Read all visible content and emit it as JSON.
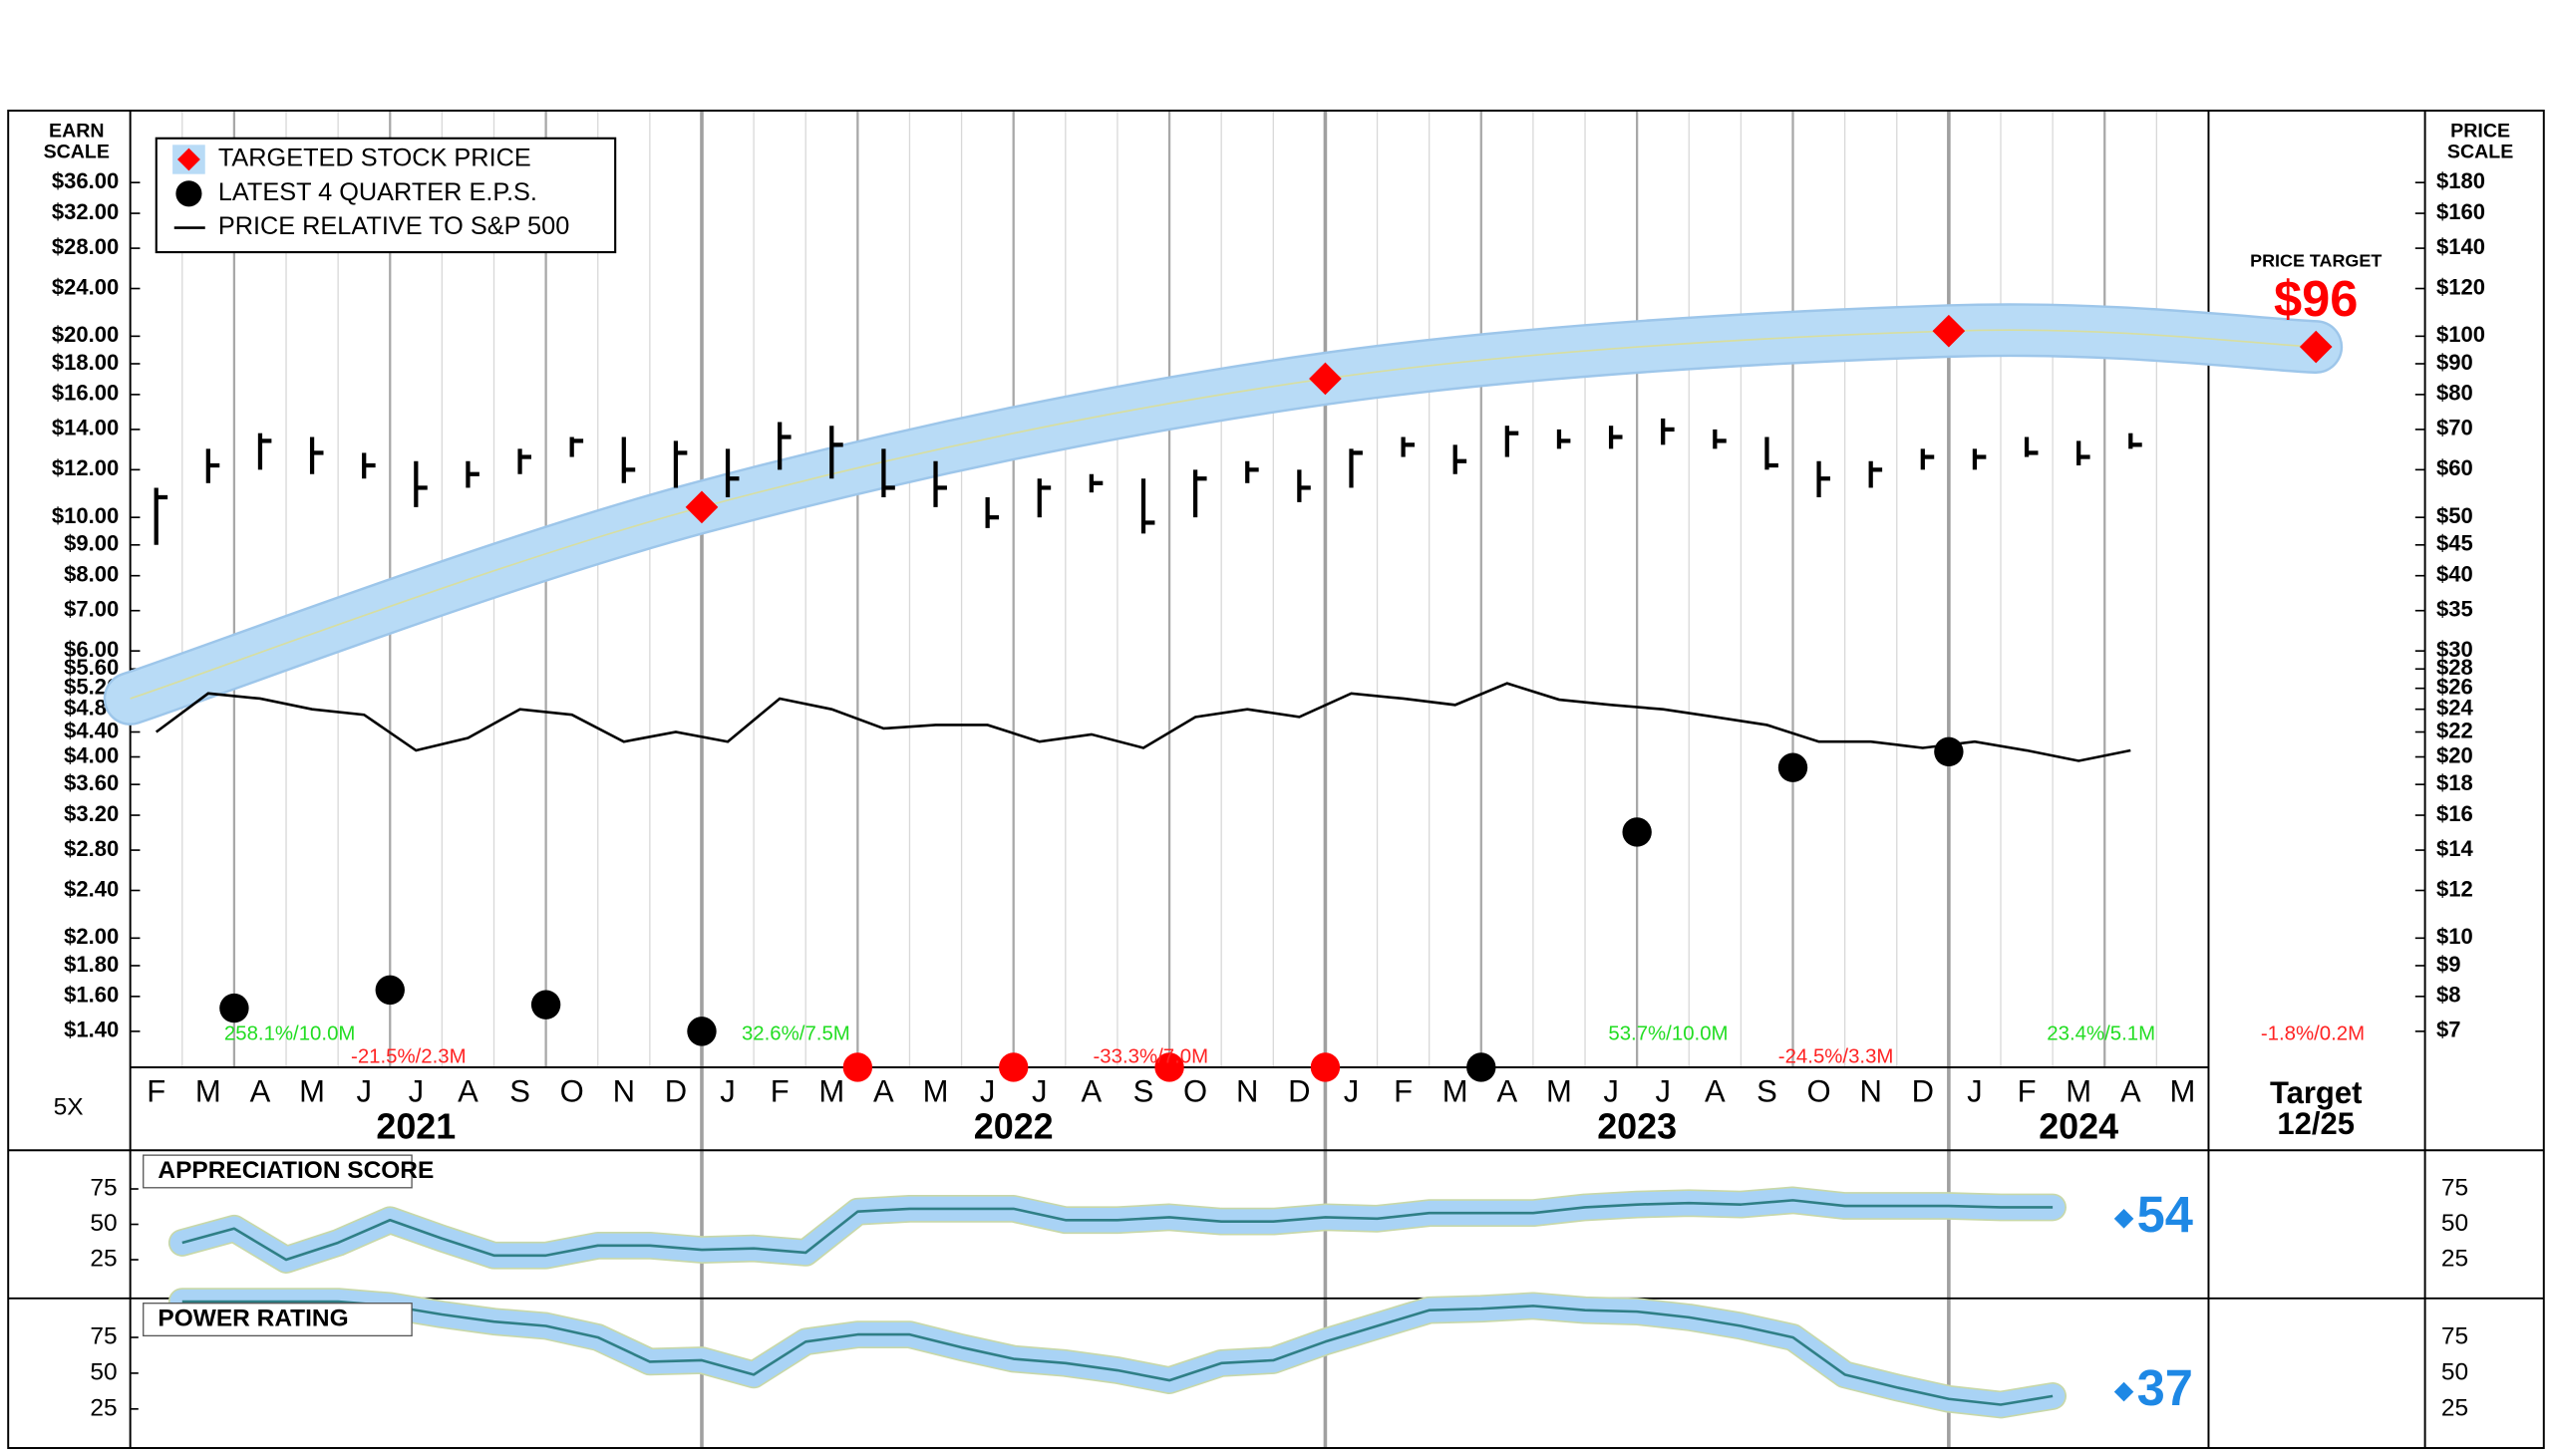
{
  "chart_data": [
    {
      "type": "stock",
      "y_label": [
        "EARN",
        "SCALE"
      ],
      "y2_label": [
        "PRICE",
        "SCALE"
      ],
      "multiplier_label": "5X",
      "log": true,
      "legend": "upper left",
      "ylim": [
        1.22,
        47.4
      ],
      "y2lim": [
        6.1,
        237
      ],
      "yticks": [
        {
          "value": 1.4,
          "label": "$1.40"
        },
        {
          "value": 1.6,
          "label": "$1.60"
        },
        {
          "value": 1.8,
          "label": "$1.80"
        },
        {
          "value": 2,
          "label": "$2.00"
        },
        {
          "value": 2.4,
          "label": "$2.40"
        },
        {
          "value": 2.8,
          "label": "$2.80"
        },
        {
          "value": 3.2,
          "label": "$3.20"
        },
        {
          "value": 3.6,
          "label": "$3.60"
        },
        {
          "value": 4,
          "label": "$4.00"
        },
        {
          "value": 4.4,
          "label": "$4.40"
        },
        {
          "value": 4.8,
          "label": "$4.80"
        },
        {
          "value": 5.2,
          "label": "$5.20"
        },
        {
          "value": 5.6,
          "label": "$5.60"
        },
        {
          "value": 6,
          "label": "$6.00"
        },
        {
          "value": 7,
          "label": "$7.00"
        },
        {
          "value": 8,
          "label": "$8.00"
        },
        {
          "value": 9,
          "label": "$9.00"
        },
        {
          "value": 10,
          "label": "$10.00"
        },
        {
          "value": 12,
          "label": "$12.00"
        },
        {
          "value": 14,
          "label": "$14.00"
        },
        {
          "value": 16,
          "label": "$16.00"
        },
        {
          "value": 18,
          "label": "$18.00"
        },
        {
          "value": 20,
          "label": "$20.00"
        },
        {
          "value": 24,
          "label": "$24.00"
        },
        {
          "value": 28,
          "label": "$28.00"
        },
        {
          "value": 32,
          "label": "$32.00"
        },
        {
          "value": 36,
          "label": "$36.00"
        }
      ],
      "y2ticks": [
        {
          "value": 7,
          "label": "$7"
        },
        {
          "value": 8,
          "label": "$8"
        },
        {
          "value": 9,
          "label": "$9"
        },
        {
          "value": 10,
          "label": "$10"
        },
        {
          "value": 12,
          "label": "$12"
        },
        {
          "value": 14,
          "label": "$14"
        },
        {
          "value": 16,
          "label": "$16"
        },
        {
          "value": 18,
          "label": "$18"
        },
        {
          "value": 20,
          "label": "$20"
        },
        {
          "value": 22,
          "label": "$22"
        },
        {
          "value": 24,
          "label": "$24"
        },
        {
          "value": 26,
          "label": "$26"
        },
        {
          "value": 28,
          "label": "$28"
        },
        {
          "value": 30,
          "label": "$30"
        },
        {
          "value": 35,
          "label": "$35"
        },
        {
          "value": 40,
          "label": "$40"
        },
        {
          "value": 45,
          "label": "$45"
        },
        {
          "value": 50,
          "label": "$50"
        },
        {
          "value": 60,
          "label": "$60"
        },
        {
          "value": 70,
          "label": "$70"
        },
        {
          "value": 80,
          "label": "$80"
        },
        {
          "value": 90,
          "label": "$90"
        },
        {
          "value": 100,
          "label": "$100"
        },
        {
          "value": 120,
          "label": "$120"
        },
        {
          "value": 140,
          "label": "$140"
        },
        {
          "value": 160,
          "label": "$160"
        },
        {
          "value": 180,
          "label": "$180"
        }
      ],
      "categories": [
        "F",
        "M",
        "A",
        "M",
        "J",
        "J",
        "A",
        "S",
        "O",
        "N",
        "D",
        "J",
        "F",
        "M",
        "A",
        "M",
        "J",
        "J",
        "A",
        "S",
        "O",
        "N",
        "D",
        "J",
        "F",
        "M",
        "A",
        "M",
        "J",
        "J",
        "A",
        "S",
        "O",
        "N",
        "D",
        "J",
        "F",
        "M",
        "A",
        "M"
      ],
      "year_labels": [
        "2021",
        "2022",
        "2023",
        "2024"
      ],
      "price_bars": {
        "axis": "y2",
        "color": "#000000",
        "high": [
          56,
          65,
          69,
          68,
          64,
          62,
          62,
          65,
          68,
          68,
          67,
          65,
          72,
          71,
          65,
          62,
          54,
          58,
          59,
          58,
          60,
          62,
          60,
          65,
          68,
          66,
          71,
          70,
          71,
          73,
          70,
          68,
          62,
          62,
          65,
          65,
          68,
          67,
          69,
          null
        ],
        "low": [
          45,
          57,
          60,
          59,
          58,
          52,
          56,
          59,
          63,
          57,
          56,
          54,
          60,
          58,
          54,
          52,
          48,
          50,
          55,
          47,
          50,
          57,
          53,
          56,
          63,
          59,
          63,
          65,
          65,
          66,
          65,
          60,
          54,
          56,
          60,
          60,
          63,
          61,
          65,
          null
        ],
        "close": [
          54,
          61,
          67,
          64,
          61,
          56,
          59,
          63,
          67,
          60,
          64,
          58,
          68,
          66,
          56,
          56,
          50,
          56,
          57,
          49,
          58,
          60,
          56,
          64,
          66,
          62,
          69,
          67,
          68,
          70,
          67,
          61,
          58,
          60,
          63,
          63,
          64,
          63,
          66,
          null
        ]
      },
      "band_start": {
        "x": "2021-02",
        "value": 25
      },
      "series": [
        {
          "name": "TARGETED STOCK PRICE",
          "color": "#ff0000",
          "axis": "y2",
          "x": [
            "2022-01",
            "2023-01",
            "2024-01"
          ],
          "values": [
            52,
            85,
            102
          ]
        },
        {
          "name": "LATEST 4 QUARTER E.P.S.",
          "color": "#000000",
          "x": [
            "2021-04",
            "2021-07",
            "2021-10",
            "2022-01",
            "2022-04",
            "2022-07",
            "2022-10",
            "2023-01",
            "2023-04",
            "2023-07",
            "2023-10",
            "2024-01"
          ],
          "values": [
            1.53,
            1.64,
            1.55,
            1.4,
            1.22,
            1.22,
            1.22,
            1.22,
            1.22,
            3.0,
            3.84,
            4.08
          ],
          "colors": [
            "#000000",
            "#000000",
            "#000000",
            "#000000",
            "#ff0000",
            "#ff0000",
            "#ff0000",
            "#ff0000",
            "#000000",
            "#000000",
            "#000000",
            "#000000"
          ]
        },
        {
          "name": "PRICE RELATIVE TO S&P 500",
          "color": "#000000",
          "axis": "y2",
          "values": [
            22.0,
            25.5,
            25.0,
            24.0,
            23.5,
            20.5,
            21.5,
            24.0,
            23.5,
            21.2,
            22.0,
            21.2,
            25.0,
            24.0,
            22.3,
            22.6,
            22.6,
            21.2,
            21.8,
            20.7,
            23.3,
            24.0,
            23.3,
            25.5,
            25.0,
            24.4,
            26.5,
            24.9,
            24.4,
            24.0,
            23.3,
            22.6,
            21.2,
            21.2,
            20.7,
            21.2,
            20.5,
            19.7,
            20.5,
            null
          ]
        }
      ],
      "price_target": {
        "label": "PRICE TARGET",
        "value": 96,
        "value_label": "$96",
        "color": "#ff0000",
        "date_label": "Target",
        "date": "12/25"
      },
      "annotations": [
        {
          "text": "258.1%/10.0M",
          "color": "#22dd22"
        },
        {
          "text": "-21.5%/2.3M",
          "color": "#ff2222"
        },
        {
          "text": "32.6%/7.5M",
          "color": "#22dd22"
        },
        {
          "text": "-33.3%/7.0M",
          "color": "#ff2222"
        },
        {
          "text": "53.7%/10.0M",
          "color": "#22dd22"
        },
        {
          "text": "-24.5%/3.3M",
          "color": "#ff2222"
        },
        {
          "text": "23.4%/5.1M",
          "color": "#22dd22"
        },
        {
          "text": "-1.8%/0.2M",
          "color": "#ff2222"
        }
      ]
    },
    {
      "type": "line",
      "title": "APPRECIATION SCORE",
      "color": "#2f7f86",
      "band_color": "#a9d3f5",
      "ylim": [
        0,
        100
      ],
      "yticks": [
        25,
        50,
        75
      ],
      "current": 54,
      "current_color": "#1e88e5",
      "values": [
        null,
        37,
        47,
        25,
        37,
        53,
        40,
        28,
        28,
        35,
        35,
        32,
        33,
        30,
        59,
        61,
        61,
        61,
        53,
        53,
        55,
        52,
        52,
        55,
        54,
        58,
        58,
        58,
        62,
        64,
        65,
        64,
        67,
        63,
        63,
        63,
        62,
        62,
        null,
        null
      ]
    },
    {
      "type": "line",
      "title": "POWER RATING",
      "color": "#2f7f86",
      "band_color": "#a9d3f5",
      "ylim": [
        0,
        100
      ],
      "yticks": [
        25,
        50,
        75
      ],
      "current": 37,
      "current_color": "#1e88e5",
      "values": [
        null,
        100,
        100,
        100,
        100,
        97,
        91,
        86,
        83,
        75,
        58,
        59,
        49,
        72,
        77,
        77,
        68,
        60,
        57,
        52,
        45,
        57,
        59,
        72,
        83,
        94,
        95,
        97,
        94,
        93,
        89,
        83,
        75,
        49,
        40,
        32,
        28,
        34,
        null,
        null
      ]
    }
  ]
}
